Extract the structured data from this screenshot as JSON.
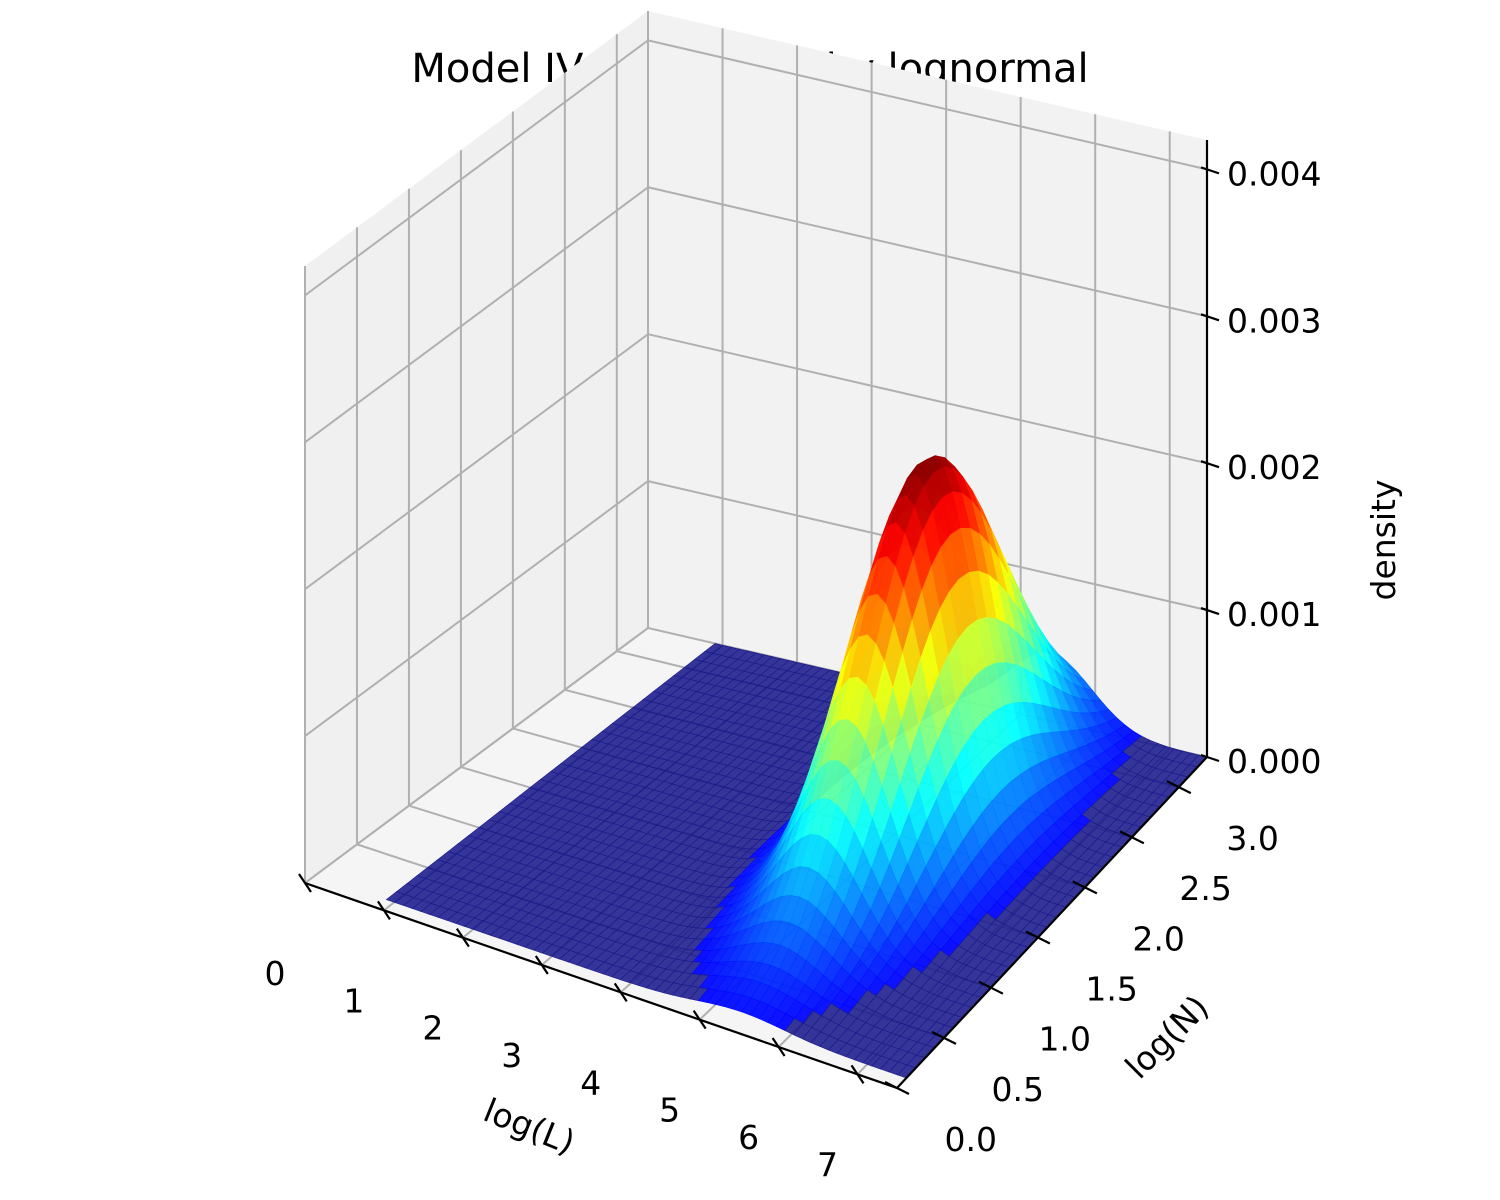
{
  "chart_data": {
    "type": "surface3d",
    "title": "Model IV distributed by lognormal",
    "xlabel": "log(L)",
    "ylabel": "log(N)",
    "zlabel": "density",
    "xlim": [
      0,
      7.5
    ],
    "ylim": [
      0,
      3.3
    ],
    "zlim": [
      0,
      0.0042
    ],
    "x_ticks": [
      0,
      1,
      2,
      3,
      4,
      5,
      6,
      7
    ],
    "x_tick_labels": [
      "0",
      "1",
      "2",
      "3",
      "4",
      "5",
      "6",
      "7"
    ],
    "y_ticks": [
      0,
      0.5,
      1.0,
      1.5,
      2.0,
      2.5,
      3.0
    ],
    "y_tick_labels": [
      "0.0",
      "0.5",
      "1.0",
      "1.5",
      "2.0",
      "2.5",
      "3.0"
    ],
    "z_ticks": [
      0,
      0.001,
      0.002,
      0.003,
      0.004
    ],
    "z_tick_labels": [
      "0.000",
      "0.001",
      "0.002",
      "0.003",
      "0.004"
    ],
    "surface": {
      "x_range": [
        0.9,
        7.5
      ],
      "y_range": [
        0.1,
        3.3
      ],
      "peak_density": 0.0026,
      "peak_log_L": 5.4,
      "peak_log_N": 2.0,
      "spread_log_L": 0.55,
      "spread_log_N": 0.7,
      "colormap": "jet"
    },
    "grid": true,
    "colors": {
      "pane": "#f2f2f2",
      "grid": "#b0b0b0",
      "base": "#1a1a8c"
    }
  }
}
